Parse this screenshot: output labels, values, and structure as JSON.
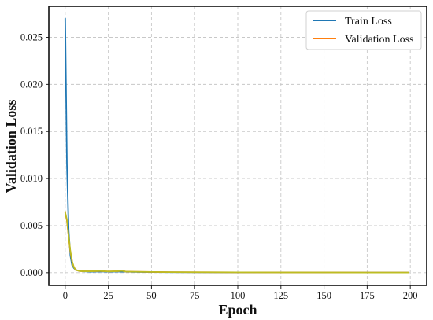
{
  "chart_data": {
    "type": "line",
    "xlabel": "Epoch",
    "ylabel": "Validation Loss",
    "xlim": [
      -9.5,
      209.5
    ],
    "ylim": [
      -0.00135,
      0.0283
    ],
    "xticks": [
      0,
      25,
      50,
      75,
      100,
      125,
      150,
      175,
      200
    ],
    "xtick_labels": [
      "0",
      "25",
      "50",
      "75",
      "100",
      "125",
      "150",
      "175",
      "200"
    ],
    "yticks": [
      0.0,
      0.005,
      0.01,
      0.015,
      0.02,
      0.025
    ],
    "ytick_labels": [
      "0.000",
      "0.005",
      "0.010",
      "0.015",
      "0.020",
      "0.025"
    ],
    "grid": true,
    "legend_position": "top-right",
    "series": [
      {
        "name": "Train Loss",
        "color": "#1f77b4",
        "x": [
          0,
          1,
          2,
          3,
          4,
          5,
          6,
          8,
          10,
          15,
          20,
          25,
          30,
          35,
          40,
          50,
          60,
          80,
          100,
          125,
          150,
          175,
          199
        ],
        "y": [
          0.027,
          0.0115,
          0.0045,
          0.0018,
          0.0008,
          0.0005,
          0.0003,
          0.0002,
          0.00015,
          0.0001,
          0.00012,
          0.0001,
          0.00011,
          0.0001,
          8e-05,
          6e-05,
          5e-05,
          4e-05,
          3e-05,
          3e-05,
          2e-05,
          2e-05,
          2e-05
        ]
      },
      {
        "name": "Validation Loss",
        "color": "#ff7f0e",
        "x": [
          0,
          1,
          2,
          3,
          4,
          5,
          6,
          8,
          10,
          15,
          20,
          25,
          30,
          33,
          35,
          40,
          50,
          60,
          80,
          100,
          125,
          150,
          175,
          199
        ],
        "y": [
          0.0064,
          0.0055,
          0.0038,
          0.0022,
          0.0012,
          0.0006,
          0.0003,
          0.00018,
          0.00015,
          0.00015,
          0.00018,
          0.00013,
          0.00016,
          0.0002,
          0.00012,
          0.0001,
          8e-05,
          6e-05,
          5e-05,
          4e-05,
          3e-05,
          3e-05,
          2e-05,
          2e-05
        ]
      },
      {
        "color": "#bcbd22",
        "x": [
          0,
          1,
          2,
          3,
          4,
          5,
          6,
          8,
          10,
          15,
          20,
          25,
          30,
          33,
          35,
          40,
          50,
          60,
          80,
          100,
          125,
          150,
          175,
          199
        ],
        "y": [
          0.0064,
          0.0056,
          0.0039,
          0.0023,
          0.0012,
          0.0006,
          0.0003,
          0.00018,
          0.00015,
          0.00015,
          0.00018,
          0.00013,
          0.00016,
          0.0002,
          0.00012,
          0.0001,
          8e-05,
          6e-05,
          5e-05,
          4e-05,
          3e-05,
          3e-05,
          2e-05,
          2e-05
        ]
      }
    ]
  }
}
